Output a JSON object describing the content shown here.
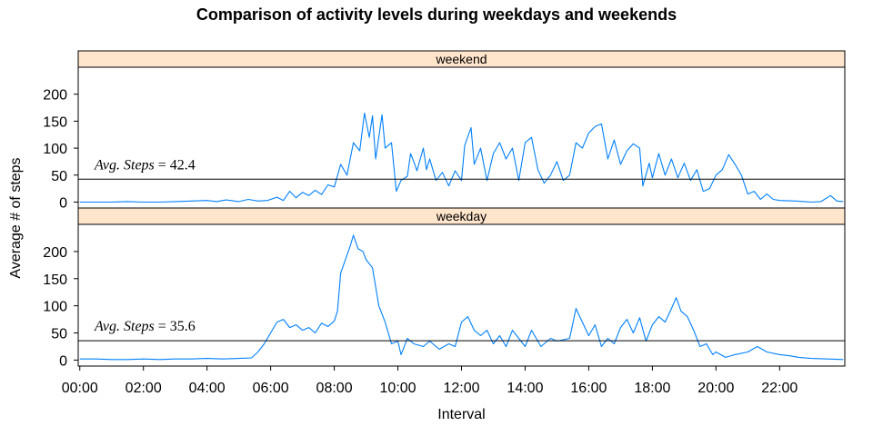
{
  "chart_data": {
    "type": "line",
    "title": "Comparison of activity levels during weekdays and weekends",
    "xlabel": "Interval",
    "ylabel": "Average # of steps",
    "x_ticks": [
      "00:00",
      "02:00",
      "04:00",
      "06:00",
      "08:00",
      "10:00",
      "12:00",
      "14:00",
      "16:00",
      "18:00",
      "20:00",
      "22:00"
    ],
    "x_unit": "hours",
    "xlim": [
      -0.05,
      24.05
    ],
    "y_ticks": [
      0,
      50,
      100,
      150,
      200
    ],
    "ylim": [
      -11,
      250
    ],
    "line_color": "#0080ff",
    "strip_color": "#ffe5cc",
    "panels": [
      {
        "name": "weekend",
        "annotation": {
          "label": "Avg. Steps",
          "value": "42.4"
        },
        "mean": 42.4,
        "points": [
          [
            0,
            0
          ],
          [
            0.5,
            0
          ],
          [
            1,
            0
          ],
          [
            1.5,
            1
          ],
          [
            2,
            0
          ],
          [
            2.5,
            0
          ],
          [
            3,
            1
          ],
          [
            3.5,
            2
          ],
          [
            4,
            3
          ],
          [
            4.3,
            1
          ],
          [
            4.6,
            4
          ],
          [
            5,
            1
          ],
          [
            5.3,
            5
          ],
          [
            5.6,
            2
          ],
          [
            5.9,
            3
          ],
          [
            6.2,
            9
          ],
          [
            6.4,
            3
          ],
          [
            6.6,
            20
          ],
          [
            6.8,
            8
          ],
          [
            7.0,
            18
          ],
          [
            7.2,
            12
          ],
          [
            7.4,
            22
          ],
          [
            7.6,
            14
          ],
          [
            7.8,
            32
          ],
          [
            8.0,
            28
          ],
          [
            8.2,
            70
          ],
          [
            8.4,
            50
          ],
          [
            8.6,
            110
          ],
          [
            8.8,
            95
          ],
          [
            8.95,
            165
          ],
          [
            9.1,
            120
          ],
          [
            9.2,
            160
          ],
          [
            9.3,
            80
          ],
          [
            9.5,
            162
          ],
          [
            9.6,
            100
          ],
          [
            9.8,
            110
          ],
          [
            9.95,
            20
          ],
          [
            10.1,
            40
          ],
          [
            10.3,
            48
          ],
          [
            10.4,
            90
          ],
          [
            10.5,
            75
          ],
          [
            10.6,
            58
          ],
          [
            10.8,
            100
          ],
          [
            10.9,
            60
          ],
          [
            11.0,
            80
          ],
          [
            11.2,
            40
          ],
          [
            11.4,
            55
          ],
          [
            11.6,
            30
          ],
          [
            11.8,
            58
          ],
          [
            12.0,
            40
          ],
          [
            12.1,
            105
          ],
          [
            12.3,
            138
          ],
          [
            12.4,
            70
          ],
          [
            12.6,
            100
          ],
          [
            12.8,
            40
          ],
          [
            13.0,
            90
          ],
          [
            13.2,
            110
          ],
          [
            13.4,
            80
          ],
          [
            13.6,
            100
          ],
          [
            13.8,
            40
          ],
          [
            14.0,
            110
          ],
          [
            14.2,
            120
          ],
          [
            14.4,
            60
          ],
          [
            14.6,
            35
          ],
          [
            14.8,
            50
          ],
          [
            15.0,
            75
          ],
          [
            15.2,
            40
          ],
          [
            15.4,
            50
          ],
          [
            15.6,
            110
          ],
          [
            15.8,
            100
          ],
          [
            16.0,
            128
          ],
          [
            16.2,
            140
          ],
          [
            16.4,
            145
          ],
          [
            16.6,
            80
          ],
          [
            16.8,
            115
          ],
          [
            17.0,
            70
          ],
          [
            17.2,
            95
          ],
          [
            17.4,
            108
          ],
          [
            17.6,
            100
          ],
          [
            17.7,
            30
          ],
          [
            17.9,
            72
          ],
          [
            18.0,
            45
          ],
          [
            18.2,
            90
          ],
          [
            18.4,
            50
          ],
          [
            18.6,
            80
          ],
          [
            18.8,
            45
          ],
          [
            19.0,
            72
          ],
          [
            19.2,
            40
          ],
          [
            19.4,
            60
          ],
          [
            19.6,
            20
          ],
          [
            19.8,
            25
          ],
          [
            20.0,
            50
          ],
          [
            20.2,
            60
          ],
          [
            20.4,
            88
          ],
          [
            20.6,
            70
          ],
          [
            20.8,
            50
          ],
          [
            21.0,
            15
          ],
          [
            21.2,
            20
          ],
          [
            21.4,
            5
          ],
          [
            21.6,
            15
          ],
          [
            21.8,
            5
          ],
          [
            22.0,
            3
          ],
          [
            22.5,
            2
          ],
          [
            23.0,
            0
          ],
          [
            23.3,
            1
          ],
          [
            23.6,
            12
          ],
          [
            23.8,
            2
          ],
          [
            24.0,
            1
          ]
        ]
      },
      {
        "name": "weekday",
        "annotation": {
          "label": "Avg. Steps",
          "value": "35.6"
        },
        "mean": 35.6,
        "points": [
          [
            0,
            2
          ],
          [
            0.5,
            2
          ],
          [
            1,
            1
          ],
          [
            1.5,
            1
          ],
          [
            2,
            2
          ],
          [
            2.5,
            1
          ],
          [
            3,
            2
          ],
          [
            3.5,
            2
          ],
          [
            4,
            3
          ],
          [
            4.5,
            2
          ],
          [
            5,
            3
          ],
          [
            5.4,
            4
          ],
          [
            5.6,
            15
          ],
          [
            5.8,
            30
          ],
          [
            6.0,
            50
          ],
          [
            6.2,
            70
          ],
          [
            6.4,
            75
          ],
          [
            6.6,
            60
          ],
          [
            6.8,
            65
          ],
          [
            7.0,
            55
          ],
          [
            7.2,
            60
          ],
          [
            7.4,
            50
          ],
          [
            7.6,
            68
          ],
          [
            7.8,
            62
          ],
          [
            8.0,
            72
          ],
          [
            8.1,
            90
          ],
          [
            8.2,
            160
          ],
          [
            8.35,
            185
          ],
          [
            8.5,
            210
          ],
          [
            8.6,
            230
          ],
          [
            8.75,
            205
          ],
          [
            8.9,
            200
          ],
          [
            9.0,
            185
          ],
          [
            9.2,
            170
          ],
          [
            9.4,
            100
          ],
          [
            9.6,
            70
          ],
          [
            9.8,
            30
          ],
          [
            10.0,
            35
          ],
          [
            10.1,
            10
          ],
          [
            10.3,
            40
          ],
          [
            10.5,
            30
          ],
          [
            10.8,
            25
          ],
          [
            11.0,
            35
          ],
          [
            11.3,
            20
          ],
          [
            11.6,
            30
          ],
          [
            11.8,
            25
          ],
          [
            12.0,
            70
          ],
          [
            12.2,
            80
          ],
          [
            12.4,
            55
          ],
          [
            12.6,
            45
          ],
          [
            12.8,
            55
          ],
          [
            13.0,
            30
          ],
          [
            13.2,
            45
          ],
          [
            13.4,
            25
          ],
          [
            13.6,
            55
          ],
          [
            13.8,
            40
          ],
          [
            14.0,
            25
          ],
          [
            14.2,
            55
          ],
          [
            14.5,
            25
          ],
          [
            14.8,
            40
          ],
          [
            15.0,
            35
          ],
          [
            15.4,
            40
          ],
          [
            15.6,
            95
          ],
          [
            15.8,
            70
          ],
          [
            16.0,
            45
          ],
          [
            16.2,
            65
          ],
          [
            16.4,
            25
          ],
          [
            16.6,
            40
          ],
          [
            16.8,
            30
          ],
          [
            17.0,
            60
          ],
          [
            17.2,
            75
          ],
          [
            17.4,
            50
          ],
          [
            17.6,
            78
          ],
          [
            17.8,
            35
          ],
          [
            18.0,
            65
          ],
          [
            18.2,
            80
          ],
          [
            18.4,
            70
          ],
          [
            18.6,
            95
          ],
          [
            18.75,
            115
          ],
          [
            18.9,
            90
          ],
          [
            19.1,
            80
          ],
          [
            19.3,
            55
          ],
          [
            19.5,
            25
          ],
          [
            19.7,
            30
          ],
          [
            19.9,
            10
          ],
          [
            20.0,
            15
          ],
          [
            20.3,
            5
          ],
          [
            20.6,
            10
          ],
          [
            21.0,
            15
          ],
          [
            21.3,
            25
          ],
          [
            21.6,
            15
          ],
          [
            22.0,
            10
          ],
          [
            22.3,
            8
          ],
          [
            22.6,
            5
          ],
          [
            23.0,
            3
          ],
          [
            23.5,
            2
          ],
          [
            24.0,
            1
          ]
        ]
      }
    ]
  }
}
